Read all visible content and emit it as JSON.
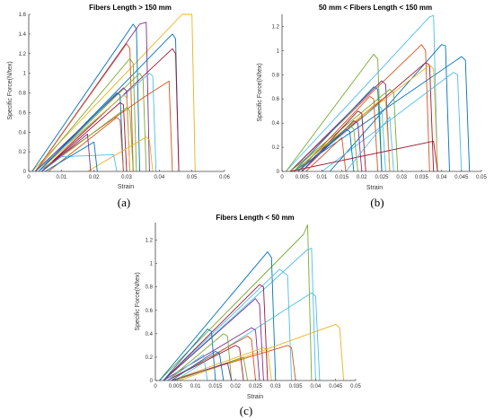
{
  "palette": [
    "#0072BD",
    "#D95319",
    "#EDB120",
    "#7E2F8E",
    "#77AC30",
    "#4DBEEE",
    "#A2142F"
  ],
  "chart_data": [
    {
      "type": "line",
      "panel_label": "(a)",
      "title": "Fibers Length > 150 mm",
      "xlabel": "Strain",
      "ylabel": "Specific Force(N/tex)",
      "xlim": [
        0,
        0.06
      ],
      "ylim": [
        0,
        1.6
      ],
      "xticks": [
        0,
        0.01,
        0.02,
        0.03,
        0.04,
        0.05,
        0.06
      ],
      "xtick_labels": [
        "0",
        "0.01",
        "0.02",
        "0.03",
        "0.04",
        "0.05",
        "0.06"
      ],
      "yticks": [
        0,
        0.2,
        0.4,
        0.6,
        0.8,
        1,
        1.2,
        1.4,
        1.6
      ],
      "ytick_labels": [
        "0",
        "0.2",
        "0.4",
        "0.6",
        "0.8",
        "1",
        "1.2",
        "1.4",
        "1.6"
      ],
      "grid": false,
      "series": [
        {
          "color_index": 2,
          "x": [
            0.001,
            0.047,
            0.05,
            0.051
          ],
          "y": [
            0,
            1.6,
            1.6,
            0
          ]
        },
        {
          "color_index": 0,
          "x": [
            0.001,
            0.032,
            0.033,
            0.034
          ],
          "y": [
            0,
            1.5,
            1.45,
            0
          ]
        },
        {
          "color_index": 3,
          "x": [
            0.002,
            0.034,
            0.036,
            0.037
          ],
          "y": [
            0,
            1.5,
            1.52,
            0
          ]
        },
        {
          "color_index": 0,
          "x": [
            0.003,
            0.044,
            0.045,
            0.046
          ],
          "y": [
            0,
            1.4,
            1.35,
            0
          ]
        },
        {
          "color_index": 6,
          "x": [
            0.004,
            0.044,
            0.045,
            0.046
          ],
          "y": [
            0,
            1.25,
            1.2,
            0
          ]
        },
        {
          "color_index": 1,
          "x": [
            0.002,
            0.03,
            0.031,
            0.032
          ],
          "y": [
            0,
            1.3,
            1.25,
            0
          ]
        },
        {
          "color_index": 4,
          "x": [
            0.002,
            0.031,
            0.032,
            0.033
          ],
          "y": [
            0,
            1.15,
            1.1,
            0
          ]
        },
        {
          "color_index": 4,
          "x": [
            0.003,
            0.034,
            0.035,
            0.036
          ],
          "y": [
            0,
            1.0,
            0.95,
            0
          ]
        },
        {
          "color_index": 5,
          "x": [
            0.002,
            0.037,
            0.038,
            0.039
          ],
          "y": [
            0,
            1.0,
            0.97,
            0
          ]
        },
        {
          "color_index": 1,
          "x": [
            0.003,
            0.035,
            0.043,
            0.044
          ],
          "y": [
            0,
            0.75,
            0.92,
            0
          ]
        },
        {
          "color_index": 3,
          "x": [
            0.002,
            0.029,
            0.03,
            0.031
          ],
          "y": [
            0,
            0.85,
            0.82,
            0
          ]
        },
        {
          "color_index": 2,
          "x": [
            0.003,
            0.029,
            0.03,
            0.031
          ],
          "y": [
            0,
            0.78,
            0.75,
            0
          ]
        },
        {
          "color_index": 0,
          "x": [
            0.003,
            0.027,
            0.028,
            0.029
          ],
          "y": [
            0,
            0.8,
            0.78,
            0
          ]
        },
        {
          "color_index": 6,
          "x": [
            0.004,
            0.028,
            0.029,
            0.03
          ],
          "y": [
            0,
            0.7,
            0.68,
            0
          ]
        },
        {
          "color_index": 4,
          "x": [
            0.004,
            0.03,
            0.031,
            0.032
          ],
          "y": [
            0,
            0.65,
            0.62,
            0
          ]
        },
        {
          "color_index": 1,
          "x": [
            0.006,
            0.027,
            0.028,
            0.029
          ],
          "y": [
            0,
            0.55,
            0.52,
            0
          ]
        },
        {
          "color_index": 2,
          "x": [
            0.018,
            0.036,
            0.037,
            0.038
          ],
          "y": [
            0,
            0.35,
            0.32,
            0
          ]
        },
        {
          "color_index": 5,
          "x": [
            0.003,
            0.01,
            0.026,
            0.027
          ],
          "y": [
            0,
            0.15,
            0.17,
            0
          ]
        },
        {
          "color_index": 3,
          "x": [
            0.004,
            0.018,
            0.019
          ],
          "y": [
            0,
            0.38,
            0
          ]
        },
        {
          "color_index": 0,
          "x": [
            0.005,
            0.02,
            0.021
          ],
          "y": [
            0,
            0.3,
            0
          ]
        }
      ]
    },
    {
      "type": "line",
      "panel_label": "(b)",
      "title": "50 mm < Fibers Length < 150 mm",
      "xlabel": "Strain",
      "ylabel": "Specific Force(N/tex)",
      "xlim": [
        0,
        0.05
      ],
      "ylim": [
        0,
        1.3
      ],
      "xticks": [
        0,
        0.005,
        0.01,
        0.015,
        0.02,
        0.025,
        0.03,
        0.035,
        0.04,
        0.045,
        0.05
      ],
      "xtick_labels": [
        "0",
        "0.005",
        "0.01",
        "0.015",
        "0.02",
        "0.025",
        "0.03",
        "0.035",
        "0.04",
        "0.045",
        "0.05"
      ],
      "yticks": [
        0,
        0.2,
        0.4,
        0.6,
        0.8,
        1,
        1.2
      ],
      "ytick_labels": [
        "0",
        "0.2",
        "0.4",
        "0.6",
        "0.8",
        "1",
        "1.2"
      ],
      "grid": false,
      "series": [
        {
          "color_index": 5,
          "x": [
            0.001,
            0.037,
            0.038,
            0.039
          ],
          "y": [
            0,
            1.28,
            1.29,
            0
          ]
        },
        {
          "color_index": 0,
          "x": [
            0.012,
            0.04,
            0.041,
            0.042
          ],
          "y": [
            0,
            1.05,
            1.04,
            0
          ]
        },
        {
          "color_index": 1,
          "x": [
            0.002,
            0.035,
            0.036,
            0.037
          ],
          "y": [
            0,
            1.05,
            1.0,
            0
          ]
        },
        {
          "color_index": 4,
          "x": [
            0.001,
            0.023,
            0.024,
            0.025
          ],
          "y": [
            0,
            0.97,
            0.93,
            0
          ]
        },
        {
          "color_index": 0,
          "x": [
            0.003,
            0.045,
            0.046,
            0.047
          ],
          "y": [
            0,
            0.95,
            0.92,
            0
          ]
        },
        {
          "color_index": 6,
          "x": [
            0.004,
            0.036,
            0.037,
            0.038
          ],
          "y": [
            0,
            0.9,
            0.88,
            0
          ]
        },
        {
          "color_index": 2,
          "x": [
            0.002,
            0.037,
            0.038,
            0.039
          ],
          "y": [
            0,
            0.88,
            0.85,
            0
          ]
        },
        {
          "color_index": 5,
          "x": [
            0.01,
            0.043,
            0.044,
            0.045
          ],
          "y": [
            0,
            0.82,
            0.8,
            0
          ]
        },
        {
          "color_index": 3,
          "x": [
            0.002,
            0.025,
            0.026,
            0.027
          ],
          "y": [
            0,
            0.75,
            0.72,
            0
          ]
        },
        {
          "color_index": 4,
          "x": [
            0.002,
            0.027,
            0.028,
            0.029
          ],
          "y": [
            0,
            0.68,
            0.65,
            0
          ]
        },
        {
          "color_index": 0,
          "x": [
            0.003,
            0.023,
            0.024,
            0.025
          ],
          "y": [
            0,
            0.7,
            0.68,
            0
          ]
        },
        {
          "color_index": 1,
          "x": [
            0.004,
            0.022,
            0.023,
            0.024
          ],
          "y": [
            0,
            0.62,
            0.6,
            0
          ]
        },
        {
          "color_index": 2,
          "x": [
            0.003,
            0.025,
            0.026,
            0.027
          ],
          "y": [
            0,
            0.6,
            0.58,
            0
          ]
        },
        {
          "color_index": 5,
          "x": [
            0.004,
            0.024,
            0.025,
            0.026
          ],
          "y": [
            0,
            0.55,
            0.52,
            0
          ]
        },
        {
          "color_index": 6,
          "x": [
            0.005,
            0.019,
            0.02,
            0.021
          ],
          "y": [
            0,
            0.5,
            0.48,
            0
          ]
        },
        {
          "color_index": 3,
          "x": [
            0.005,
            0.018,
            0.019,
            0.02
          ],
          "y": [
            0,
            0.42,
            0.4,
            0
          ]
        },
        {
          "color_index": 4,
          "x": [
            0.003,
            0.017,
            0.018,
            0.019
          ],
          "y": [
            0,
            0.38,
            0.35,
            0
          ]
        },
        {
          "color_index": 0,
          "x": [
            0.004,
            0.016,
            0.017,
            0.018
          ],
          "y": [
            0,
            0.35,
            0.33,
            0
          ]
        },
        {
          "color_index": 6,
          "x": [
            0.002,
            0.038,
            0.039
          ],
          "y": [
            0,
            0.25,
            0
          ]
        },
        {
          "color_index": 5,
          "x": [
            0.016,
            0.027,
            0.028
          ],
          "y": [
            0,
            0.45,
            0
          ]
        },
        {
          "color_index": 1,
          "x": [
            0.006,
            0.015,
            0.016
          ],
          "y": [
            0,
            0.28,
            0
          ]
        }
      ]
    },
    {
      "type": "line",
      "panel_label": "(c)",
      "title": "Fibers Length < 50 mm",
      "xlabel": "Strain",
      "ylabel": "Specific Force(N/tex)",
      "xlim": [
        0,
        0.05
      ],
      "ylim": [
        0,
        1.35
      ],
      "xticks": [
        0,
        0.005,
        0.01,
        0.015,
        0.02,
        0.025,
        0.03,
        0.035,
        0.04,
        0.045,
        0.05
      ],
      "xtick_labels": [
        "0",
        "0.005",
        "0.01",
        "0.015",
        "0.02",
        "0.025",
        "0.03",
        "0.035",
        "0.04",
        "0.045",
        "0.05"
      ],
      "yticks": [
        0,
        0.2,
        0.4,
        0.6,
        0.8,
        1,
        1.2
      ],
      "ytick_labels": [
        "0",
        "0.2",
        "0.4",
        "0.6",
        "0.8",
        "1",
        "1.2"
      ],
      "grid": false,
      "series": [
        {
          "color_index": 4,
          "x": [
            0.001,
            0.037,
            0.038,
            0.039
          ],
          "y": [
            0,
            1.25,
            1.33,
            0
          ]
        },
        {
          "color_index": 5,
          "x": [
            0.002,
            0.038,
            0.039,
            0.04
          ],
          "y": [
            0,
            1.12,
            1.13,
            0
          ]
        },
        {
          "color_index": 0,
          "x": [
            0.001,
            0.028,
            0.029,
            0.03
          ],
          "y": [
            0,
            1.1,
            1.05,
            0
          ]
        },
        {
          "color_index": 5,
          "x": [
            0.002,
            0.031,
            0.033,
            0.034
          ],
          "y": [
            0,
            0.95,
            0.9,
            0
          ]
        },
        {
          "color_index": 6,
          "x": [
            0.002,
            0.026,
            0.027,
            0.028
          ],
          "y": [
            0,
            0.82,
            0.8,
            0
          ]
        },
        {
          "color_index": 5,
          "x": [
            0.005,
            0.039,
            0.04,
            0.041
          ],
          "y": [
            0,
            0.75,
            0.72,
            0
          ]
        },
        {
          "color_index": 3,
          "x": [
            0.002,
            0.025,
            0.026,
            0.027
          ],
          "y": [
            0,
            0.7,
            0.65,
            0
          ]
        },
        {
          "color_index": 2,
          "x": [
            0.006,
            0.045,
            0.046,
            0.047
          ],
          "y": [
            0,
            0.48,
            0.45,
            0
          ]
        },
        {
          "color_index": 0,
          "x": [
            0.002,
            0.013,
            0.014,
            0.015
          ],
          "y": [
            0,
            0.44,
            0.42,
            0
          ]
        },
        {
          "color_index": 3,
          "x": [
            0.002,
            0.024,
            0.025,
            0.026
          ],
          "y": [
            0,
            0.45,
            0.43,
            0
          ]
        },
        {
          "color_index": 4,
          "x": [
            0.003,
            0.017,
            0.018,
            0.019
          ],
          "y": [
            0,
            0.4,
            0.38,
            0
          ]
        },
        {
          "color_index": 1,
          "x": [
            0.003,
            0.023,
            0.024,
            0.025
          ],
          "y": [
            0,
            0.38,
            0.35,
            0
          ]
        },
        {
          "color_index": 1,
          "x": [
            0.004,
            0.033,
            0.034,
            0.035
          ],
          "y": [
            0,
            0.3,
            0.28,
            0
          ]
        },
        {
          "color_index": 6,
          "x": [
            0.003,
            0.02,
            0.021,
            0.022
          ],
          "y": [
            0,
            0.3,
            0.28,
            0
          ]
        },
        {
          "color_index": 2,
          "x": [
            0.004,
            0.027,
            0.028,
            0.029
          ],
          "y": [
            0,
            0.28,
            0.26,
            0
          ]
        },
        {
          "color_index": 0,
          "x": [
            0.004,
            0.015,
            0.016,
            0.017
          ],
          "y": [
            0,
            0.25,
            0.23,
            0
          ]
        },
        {
          "color_index": 5,
          "x": [
            0.003,
            0.012,
            0.013
          ],
          "y": [
            0,
            0.22,
            0
          ]
        },
        {
          "color_index": 4,
          "x": [
            0.005,
            0.022,
            0.023
          ],
          "y": [
            0,
            0.2,
            0
          ]
        },
        {
          "color_index": 3,
          "x": [
            0.004,
            0.018,
            0.019
          ],
          "y": [
            0,
            0.15,
            0
          ]
        }
      ]
    }
  ]
}
